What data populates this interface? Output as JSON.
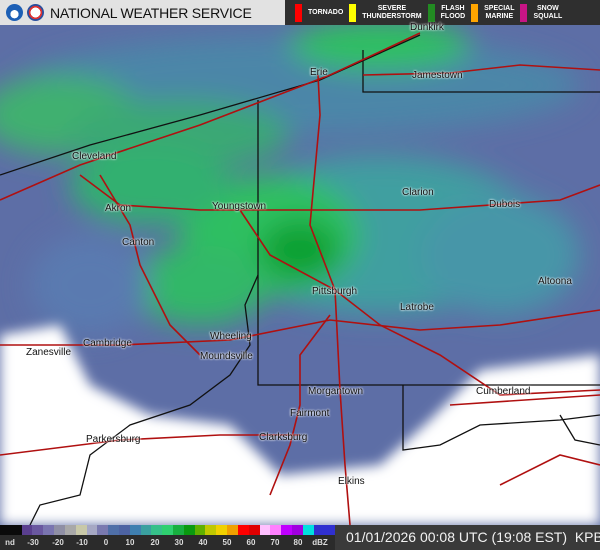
{
  "header": {
    "title": "NATIONAL WEATHER SERVICE",
    "logos": [
      "noaa-logo",
      "nws-logo"
    ],
    "warnings": [
      {
        "label": "TORNADO",
        "color": "#ff0000"
      },
      {
        "label": "SEVERE\nTHUNDERSTORM",
        "color": "#ffff00"
      },
      {
        "label": "FLASH\nFLOOD",
        "color": "#228b22"
      },
      {
        "label": "SPECIAL\nMARINE",
        "color": "#ffa500"
      },
      {
        "label": "SNOW\nSQUALL",
        "color": "#c71585"
      }
    ]
  },
  "map": {
    "cities": [
      "Dunkirk",
      "Erie",
      "Jamestown",
      "Cleveland",
      "Akron",
      "Youngstown",
      "Clarion",
      "Dubois",
      "Canton",
      "Pittsburgh",
      "Altoona",
      "Latrobe",
      "Wheeling",
      "Moundsville",
      "Cambridge",
      "Zanesville",
      "Morgantown",
      "Cumberland",
      "Fairmont",
      "Parkersburg",
      "Clarksburg",
      "Elkins"
    ]
  },
  "legend": {
    "ticks": [
      "nd",
      "-30",
      "-20",
      "-10",
      "0",
      "10",
      "20",
      "30",
      "40",
      "50",
      "60",
      "70",
      "80",
      "dBZ"
    ],
    "colors": [
      "#0a0a0a",
      "#0a0a0a",
      "#5a3f8f",
      "#6a58a0",
      "#7a75b0",
      "#8f8fa5",
      "#a8a8a8",
      "#c8c8a8",
      "#a6a8c4",
      "#7a7ab0",
      "#4f6fa8",
      "#4d63a3",
      "#3f7fb0",
      "#3aa0a0",
      "#36c08a",
      "#2fd070",
      "#18b040",
      "#0a9a10",
      "#60b000",
      "#c0c800",
      "#f0d000",
      "#f0a000",
      "#ff0000",
      "#e00000",
      "#ffc0ff",
      "#ff80ff",
      "#c000ff",
      "#a000e0",
      "#00e0e0",
      "#3030d0",
      "#3030d0"
    ]
  },
  "footer": {
    "timestamp": "01/01/2026 00:08 UTC (19:08 EST)",
    "station": "KPBZ"
  }
}
